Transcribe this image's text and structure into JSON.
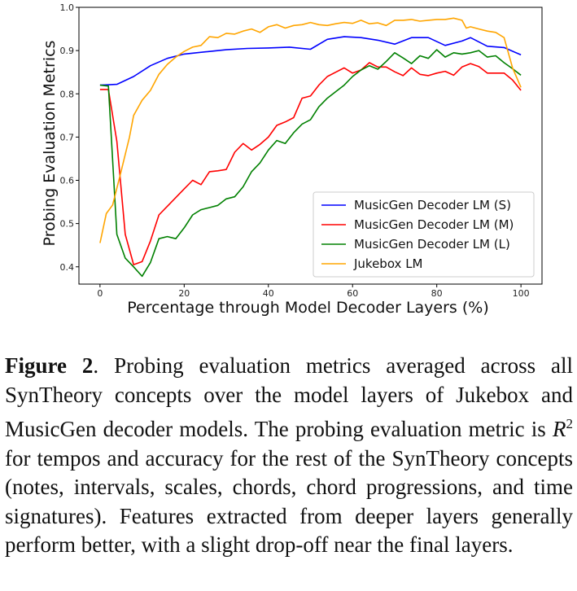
{
  "chart_data": {
    "type": "line",
    "title": "",
    "xlabel": "Percentage through Model Decoder Layers (%)",
    "ylabel": "Probing Evaluation Metrics",
    "xlim": [
      -5,
      105
    ],
    "ylim": [
      0.36,
      1.0
    ],
    "xticks": [
      0,
      20,
      40,
      60,
      80,
      100
    ],
    "yticks": [
      0.4,
      0.5,
      0.6,
      0.7,
      0.8,
      0.9,
      1.0
    ],
    "xtick_labels": [
      "0",
      "20",
      "40",
      "60",
      "80",
      "100"
    ],
    "ytick_labels": [
      "0.4",
      "0.5",
      "0.6",
      "0.7",
      "0.8",
      "0.9",
      "1.0"
    ],
    "grid": false,
    "legend_position": "lower-right",
    "series": [
      {
        "name": "MusicGen Decoder LM (S)",
        "color": "#0000ff",
        "x": [
          0,
          4,
          8,
          12,
          16,
          20,
          25,
          30,
          35,
          40,
          45,
          50,
          54,
          58,
          62,
          66,
          70,
          74,
          78,
          82,
          86,
          88,
          92,
          96,
          100
        ],
        "y": [
          0.82,
          0.822,
          0.84,
          0.865,
          0.882,
          0.892,
          0.897,
          0.902,
          0.905,
          0.906,
          0.908,
          0.903,
          0.926,
          0.932,
          0.93,
          0.924,
          0.915,
          0.93,
          0.93,
          0.912,
          0.922,
          0.93,
          0.91,
          0.907,
          0.89
        ]
      },
      {
        "name": "MusicGen Decoder LM (M)",
        "color": "#ff0000",
        "x": [
          0,
          2,
          4,
          6,
          8,
          10,
          12,
          14,
          16,
          18,
          20,
          22,
          24,
          26,
          28,
          30,
          32,
          34,
          36,
          38,
          40,
          42,
          44,
          46,
          48,
          50,
          52,
          54,
          56,
          58,
          60,
          62,
          64,
          66,
          68,
          70,
          72,
          74,
          76,
          78,
          80,
          82,
          84,
          86,
          88,
          90,
          92,
          94,
          96,
          98,
          100
        ],
        "y": [
          0.81,
          0.81,
          0.69,
          0.475,
          0.405,
          0.412,
          0.46,
          0.52,
          0.54,
          0.56,
          0.58,
          0.6,
          0.59,
          0.62,
          0.622,
          0.625,
          0.665,
          0.685,
          0.67,
          0.683,
          0.7,
          0.727,
          0.735,
          0.745,
          0.79,
          0.795,
          0.82,
          0.84,
          0.85,
          0.86,
          0.848,
          0.855,
          0.872,
          0.862,
          0.862,
          0.851,
          0.842,
          0.86,
          0.845,
          0.842,
          0.848,
          0.852,
          0.843,
          0.862,
          0.87,
          0.863,
          0.848,
          0.848,
          0.848,
          0.832,
          0.808
        ]
      },
      {
        "name": "MusicGen Decoder LM (L)",
        "color": "#008000",
        "x": [
          0,
          2,
          4,
          6,
          8,
          10,
          12,
          14,
          16,
          18,
          20,
          22,
          24,
          26,
          28,
          30,
          32,
          34,
          36,
          38,
          40,
          42,
          44,
          46,
          48,
          50,
          52,
          54,
          56,
          58,
          60,
          62,
          64,
          66,
          68,
          70,
          72,
          74,
          76,
          78,
          80,
          82,
          84,
          86,
          88,
          90,
          92,
          94,
          96,
          98,
          100
        ],
        "y": [
          0.82,
          0.818,
          0.475,
          0.42,
          0.4,
          0.378,
          0.41,
          0.465,
          0.47,
          0.465,
          0.49,
          0.52,
          0.532,
          0.537,
          0.542,
          0.557,
          0.562,
          0.585,
          0.62,
          0.64,
          0.67,
          0.692,
          0.685,
          0.71,
          0.73,
          0.74,
          0.77,
          0.79,
          0.805,
          0.82,
          0.84,
          0.855,
          0.865,
          0.857,
          0.875,
          0.895,
          0.883,
          0.87,
          0.888,
          0.882,
          0.902,
          0.885,
          0.895,
          0.892,
          0.895,
          0.9,
          0.885,
          0.888,
          0.872,
          0.858,
          0.843
        ]
      },
      {
        "name": "Jukebox LM",
        "color": "#ffa500",
        "x": [
          0,
          1.5,
          3,
          5,
          7,
          8,
          10,
          12,
          14,
          16,
          18,
          20,
          22,
          24,
          26,
          28,
          30,
          32,
          34,
          36,
          38,
          40,
          42,
          44,
          46,
          48,
          50,
          52,
          54,
          56,
          58,
          60,
          62,
          64,
          66,
          68,
          70,
          72,
          74,
          76,
          78,
          80,
          82,
          84,
          86,
          87,
          88,
          90,
          92,
          94,
          96,
          98,
          100
        ],
        "y": [
          0.455,
          0.523,
          0.543,
          0.62,
          0.7,
          0.75,
          0.785,
          0.808,
          0.845,
          0.868,
          0.885,
          0.898,
          0.908,
          0.912,
          0.932,
          0.93,
          0.94,
          0.938,
          0.945,
          0.95,
          0.942,
          0.955,
          0.96,
          0.952,
          0.958,
          0.96,
          0.965,
          0.96,
          0.958,
          0.962,
          0.965,
          0.963,
          0.97,
          0.962,
          0.964,
          0.958,
          0.97,
          0.97,
          0.972,
          0.968,
          0.97,
          0.972,
          0.972,
          0.975,
          0.97,
          0.952,
          0.955,
          0.95,
          0.945,
          0.942,
          0.93,
          0.86,
          0.815
        ]
      }
    ]
  },
  "caption": {
    "label": "Figure 2",
    "text_before_math": ". Probing evaluation metrics averaged across all SynTheory concepts over the model layers of Jukebox and MusicGen decoder models. The probing evaluation metric is ",
    "math_base": "R",
    "math_sup": "2",
    "text_after_math": " for tempos and accuracy for the rest of the SynTheory concepts (notes, intervals, scales, chords, chord progressions, and time signatures). Features extracted from deeper layers generally perform better, with a slight drop-off near the final layers."
  }
}
